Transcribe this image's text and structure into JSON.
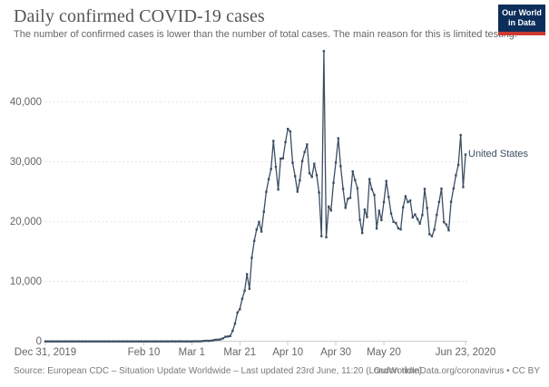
{
  "header": {
    "title": "Daily confirmed COVID-19 cases",
    "subtitle": "The number of confirmed cases is lower than the number of total cases. The main reason for this is limited testing.",
    "logo": {
      "line1": "Our World",
      "line2": "in Data",
      "bg_color": "#0d2e5b",
      "stripe_color": "#cb3a31"
    }
  },
  "footer": {
    "source": "Source: European CDC – Situation Update Worldwide – Last updated 23rd June, 11:20 (London time)",
    "attribution": "OurWorldInData.org/coronavirus • CC BY"
  },
  "chart_data": {
    "type": "line",
    "title": "Daily confirmed COVID-19 cases",
    "series_label": "United States",
    "line_color": "#3c4e63",
    "grid": "dotted-horizontal-gridlines",
    "legend_position": "end-of-line",
    "start_date": "2019-12-31",
    "end_date": "2020-06-23",
    "x_total_days": 175,
    "ylim": [
      0,
      48529
    ],
    "y_ticks": [
      {
        "label": "0",
        "value": 0
      },
      {
        "label": "10,000",
        "value": 10000
      },
      {
        "label": "20,000",
        "value": 20000
      },
      {
        "label": "30,000",
        "value": 30000
      },
      {
        "label": "40,000",
        "value": 40000
      }
    ],
    "x_ticks": [
      {
        "label": "Dec 31, 2019",
        "day": 0
      },
      {
        "label": "Feb 10",
        "day": 41
      },
      {
        "label": "Mar 1",
        "day": 61
      },
      {
        "label": "Mar 21",
        "day": 81
      },
      {
        "label": "Apr 10",
        "day": 101
      },
      {
        "label": "Apr 30",
        "day": 121
      },
      {
        "label": "May 20",
        "day": 141
      },
      {
        "label": "Jun 23, 2020",
        "day": 175
      }
    ],
    "values_note": "daily new confirmed cases, one value per day from start_date to end_date",
    "values": [
      0,
      0,
      0,
      0,
      0,
      0,
      0,
      0,
      0,
      0,
      0,
      0,
      0,
      0,
      0,
      0,
      0,
      0,
      0,
      0,
      0,
      1,
      0,
      0,
      1,
      1,
      2,
      0,
      0,
      0,
      1,
      1,
      1,
      0,
      3,
      0,
      0,
      1,
      0,
      0,
      0,
      0,
      1,
      0,
      1,
      1,
      0,
      0,
      0,
      0,
      0,
      1,
      1,
      19,
      0,
      1,
      18,
      0,
      6,
      1,
      6,
      3,
      20,
      14,
      22,
      34,
      74,
      105,
      95,
      121,
      200,
      271,
      287,
      351,
      511,
      777,
      823,
      887,
      1766,
      2988,
      4835,
      5374,
      7123,
      8459,
      11236,
      8789,
      13963,
      16797,
      18695,
      19979,
      18360,
      21677,
      24998,
      27103,
      28819,
      33510,
      29164,
      25398,
      30561,
      30613,
      33323,
      35527,
      35098,
      29861,
      27620,
      25023,
      26922,
      30148,
      31667,
      32922,
      28123,
      27500,
      29700,
      27800,
      24900,
      17588,
      48529,
      17411,
      22541,
      21901,
      26512,
      29917,
      33955,
      29288,
      25501,
      22335,
      23841,
      23996,
      28424,
      26957,
      25612,
      20329,
      18117,
      22048,
      20782,
      27143,
      25434,
      24487,
      18873,
      21841,
      20289,
      23285,
      26813,
      24147,
      21395,
      20007,
      19790,
      18910,
      18721,
      22413,
      24266,
      23290,
      23553,
      20724,
      21222,
      20461,
      19699,
      21140,
      25504,
      22302,
      17919,
      17598,
      18679,
      21148,
      23300,
      25540,
      19920,
      19543,
      18577,
      23351,
      25559,
      27762,
      29500,
      34500,
      25800,
      31250
    ]
  },
  "layout_colors": {
    "gridline": "#e0e0e0",
    "zero_axis": "#cccccc",
    "tick_mark": "#cccccc"
  }
}
